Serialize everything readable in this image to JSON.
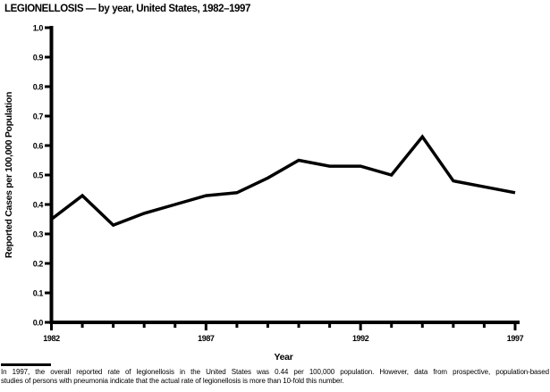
{
  "title": "LEGIONELLOSIS — by year, United States, 1982–1997",
  "colors": {
    "line": "#000000",
    "text": "#000000",
    "background": "#ffffff"
  },
  "chart_data": {
    "type": "line",
    "title": "LEGIONELLOSIS — by year, United States, 1982–1997",
    "xlabel": "Year",
    "ylabel": "Reported Cases per 100,000 Population",
    "x": [
      1982,
      1983,
      1984,
      1985,
      1986,
      1987,
      1988,
      1989,
      1990,
      1991,
      1992,
      1993,
      1994,
      1995,
      1996,
      1997
    ],
    "values": [
      0.35,
      0.43,
      0.33,
      0.37,
      0.4,
      0.43,
      0.44,
      0.49,
      0.55,
      0.53,
      0.53,
      0.5,
      0.63,
      0.48,
      0.46,
      0.44
    ],
    "ylim": [
      0.0,
      1.0
    ],
    "ytick_step": 0.1,
    "ytick_labels": [
      "0.0",
      "0.1",
      "0.2",
      "0.3",
      "0.4",
      "0.5",
      "0.6",
      "0.7",
      "0.8",
      "0.9",
      "1.0"
    ],
    "xtick_labels": [
      "1982",
      "1987",
      "1992",
      "1997"
    ],
    "grid": false,
    "legend": "none",
    "line_style": "solid"
  },
  "footnote": {
    "line1": "In 1997, the overall reported rate of legionellosis in the United States was 0.44 per 100,000 population. However, data from prospective, population-based",
    "line2": "studies of persons with pneumonia indicate that the actual rate of legionellosis is more than 10-fold this number."
  }
}
